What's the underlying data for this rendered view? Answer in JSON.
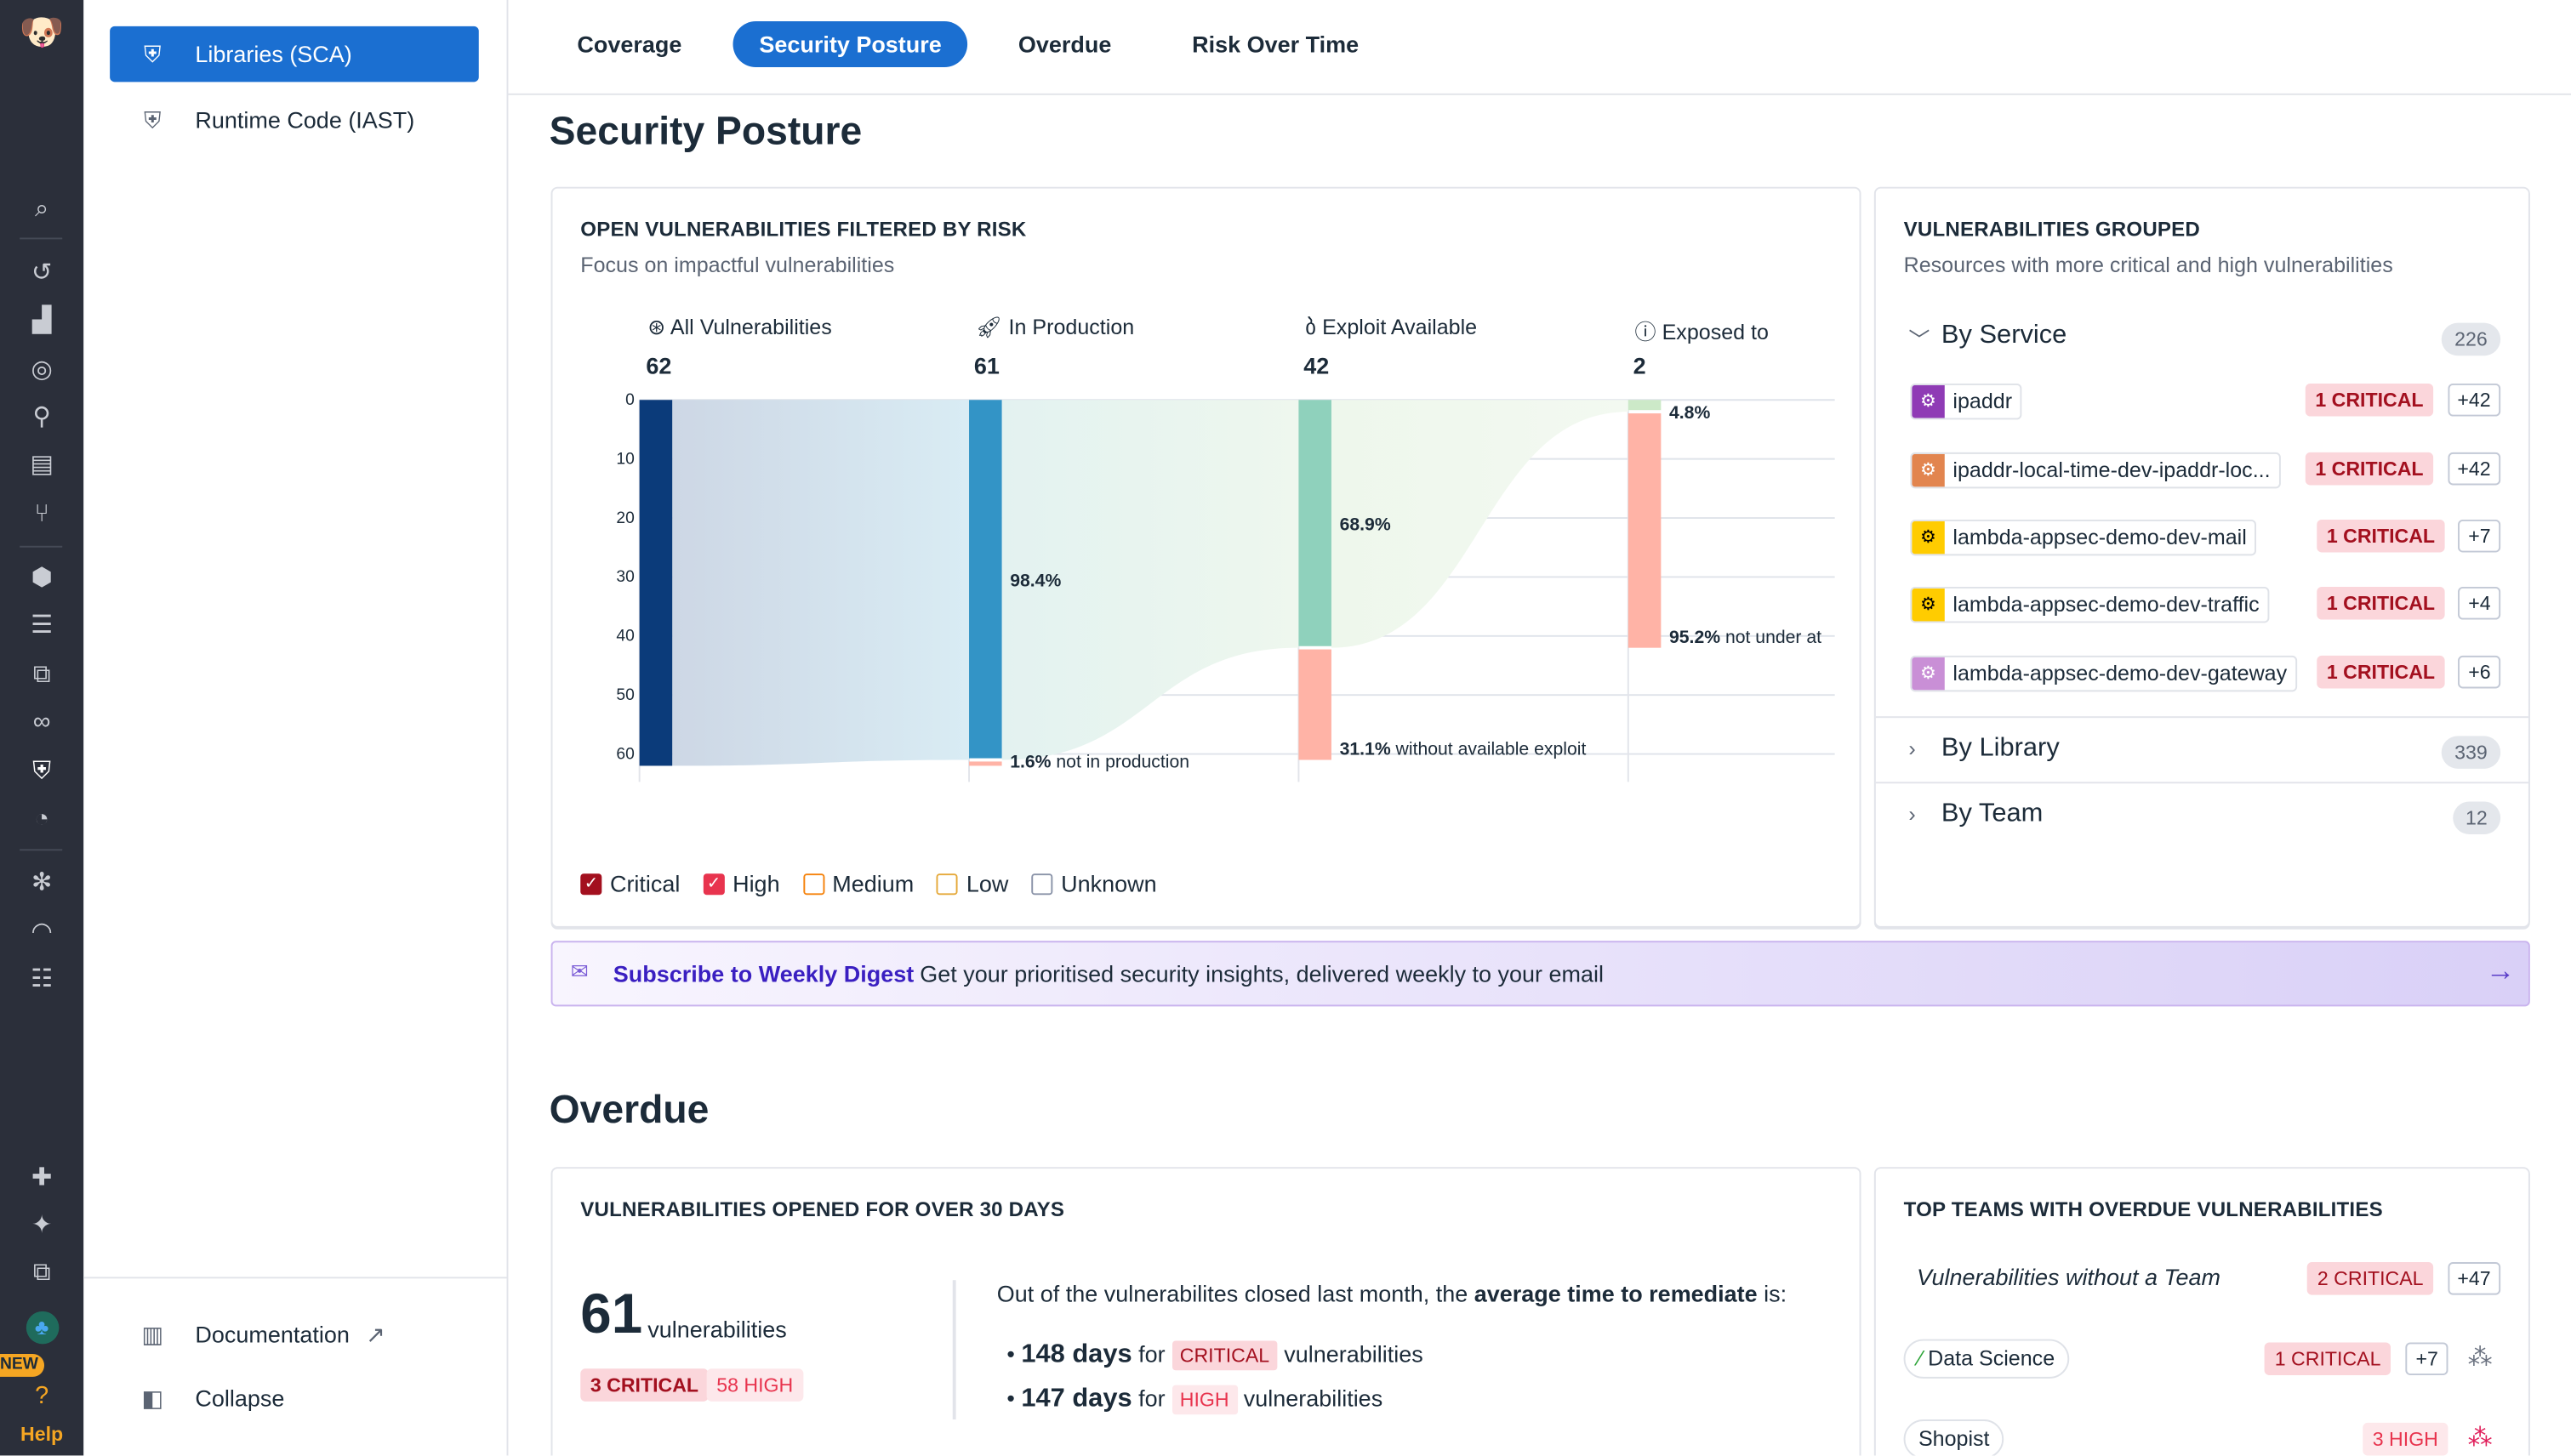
{
  "rail": {
    "icons": [
      "datadog-logo-icon",
      "search-icon",
      "history-icon",
      "dashboard-chart-icon",
      "monitors-icon",
      "binoculars-icon",
      "infrastructure-icon",
      "ci-pipeline-icon",
      "service-hexagons-icon",
      "logs-filter-icon",
      "apm-icon",
      "integrations-link-icon",
      "security-shield-icon",
      "rum-icon",
      "bug-icon",
      "synthetics-gauge-icon",
      "watchdog-icon",
      "integrations-puzzle-icon",
      "bits-ai-sparkle-icon",
      "copy-icon",
      "avatar-icon"
    ],
    "new_badge": "NEW",
    "help_label": "Help",
    "help_color": "#f5a623"
  },
  "subnav": {
    "items": [
      {
        "label": "Libraries (SCA)",
        "icon": "shield-icon",
        "active": true
      },
      {
        "label": "Runtime Code (IAST)",
        "icon": "code-shield-icon",
        "active": false
      }
    ],
    "footer": [
      {
        "label": "Documentation",
        "icon": "books-icon",
        "trailing_icon": "external-link-icon"
      },
      {
        "label": "Collapse",
        "icon": "collapse-icon"
      }
    ]
  },
  "tabs": [
    {
      "label": "Coverage",
      "active": false
    },
    {
      "label": "Security Posture",
      "active": true
    },
    {
      "label": "Overdue",
      "active": false
    },
    {
      "label": "Risk Over Time",
      "active": false
    }
  ],
  "accent": "#1b6fd1",
  "security_posture": {
    "title": "Security Posture",
    "risk_card": {
      "title": "OPEN VULNERABILITIES FILTERED BY RISK",
      "subtitle": "Focus on impactful vulnerabilities",
      "legend": [
        {
          "label": "Critical",
          "checked": true,
          "color": "#a3101f"
        },
        {
          "label": "High",
          "checked": true,
          "color": "#e8344e"
        },
        {
          "label": "Medium",
          "checked": false,
          "color": "#f5820b"
        },
        {
          "label": "Low",
          "checked": false,
          "color": "#e5a93a"
        },
        {
          "label": "Unknown",
          "checked": false,
          "color": "#8a93a8"
        }
      ]
    },
    "grouped_card": {
      "title": "VULNERABILITIES GROUPED",
      "subtitle": "Resources with more critical and high vulnerabilities",
      "by_service": {
        "label": "By Service",
        "count": "226",
        "expanded": true
      },
      "services": [
        {
          "name": "ipaddr",
          "color": "#8f3bb5",
          "critical": "1 CRITICAL",
          "more": "+42"
        },
        {
          "name": "ipaddr-local-time-dev-ipaddr-loc...",
          "color": "#e2854f",
          "critical": "1 CRITICAL",
          "more": "+42"
        },
        {
          "name": "lambda-appsec-demo-dev-mail",
          "color": "#ffcc00",
          "critical": "1 CRITICAL",
          "more": "+7"
        },
        {
          "name": "lambda-appsec-demo-dev-traffic",
          "color": "#ffcc00",
          "critical": "1 CRITICAL",
          "more": "+4"
        },
        {
          "name": "lambda-appsec-demo-dev-gateway",
          "color": "#c98fd6",
          "critical": "1 CRITICAL",
          "more": "+6"
        }
      ],
      "by_library": {
        "label": "By Library",
        "count": "339"
      },
      "by_team": {
        "label": "By Team",
        "count": "12"
      }
    },
    "banner": {
      "link": "Subscribe to Weekly Digest",
      "text": "Get your prioritised security insights, delivered weekly to your email"
    }
  },
  "overdue": {
    "title": "Overdue",
    "open_card": {
      "title": "VULNERABILITIES OPENED FOR OVER 30 DAYS",
      "count": "61",
      "count_unit": "vulnerabilities",
      "critical": "3 CRITICAL",
      "high": "58 HIGH",
      "intro_plain": "Out of the vulnerabilites closed last month, the ",
      "intro_bold": "average time to remediate",
      "intro_end": " is:",
      "items": [
        {
          "days": "148 days",
          "for": "for",
          "severity": "CRITICAL",
          "suffix": "vulnerabilities"
        },
        {
          "days": "147 days",
          "for": "for",
          "severity": "HIGH",
          "suffix": "vulnerabilities"
        }
      ]
    },
    "teams_card": {
      "title": "TOP TEAMS WITH OVERDUE VULNERABILITIES",
      "teams": [
        {
          "name": "Vulnerabilities without a Team",
          "badge": "2 CRITICAL",
          "badge_type": "critical",
          "more": "+47"
        },
        {
          "name": "Data Science",
          "badge": "1 CRITICAL",
          "badge_type": "critical",
          "more": "+7",
          "icon": "test-tube-icon",
          "channel": "slack-icon"
        },
        {
          "name": "Shopist",
          "badge": "3 HIGH",
          "badge_type": "high",
          "channel": "slack-icon"
        }
      ]
    }
  },
  "chart_data": {
    "type": "sankey",
    "ylim": [
      0,
      62
    ],
    "yticks": [
      0,
      10,
      20,
      30,
      40,
      50,
      60
    ],
    "grid": true,
    "stages": [
      {
        "label": "All Vulnerabilities",
        "value": 62,
        "icon": "vulnerability-icon",
        "passed": 62,
        "dropped": 0,
        "passed_label": "",
        "dropped_label": "",
        "color": "#0b3b7a"
      },
      {
        "label": "In Production",
        "value": 61,
        "icon": "rocket-icon",
        "passed": 61,
        "dropped": 1,
        "passed_label": "98.4%",
        "dropped_label": "1.6% not in production",
        "color": "#3394c6"
      },
      {
        "label": "Exploit Available",
        "value": 42,
        "icon": "bomb-icon",
        "passed": 42,
        "dropped": 19,
        "passed_label": "68.9%",
        "dropped_label": "31.1% without available exploit",
        "color": "#8fd1bc"
      },
      {
        "label": "Exposed to",
        "value": 2,
        "icon": "alert-shield-icon",
        "passed": 2,
        "dropped": 40,
        "passed_label": "4.8%",
        "dropped_label": "95.2% not under at",
        "color": "#cce9c8"
      }
    ],
    "dropped_color": "#ffb3a6"
  }
}
